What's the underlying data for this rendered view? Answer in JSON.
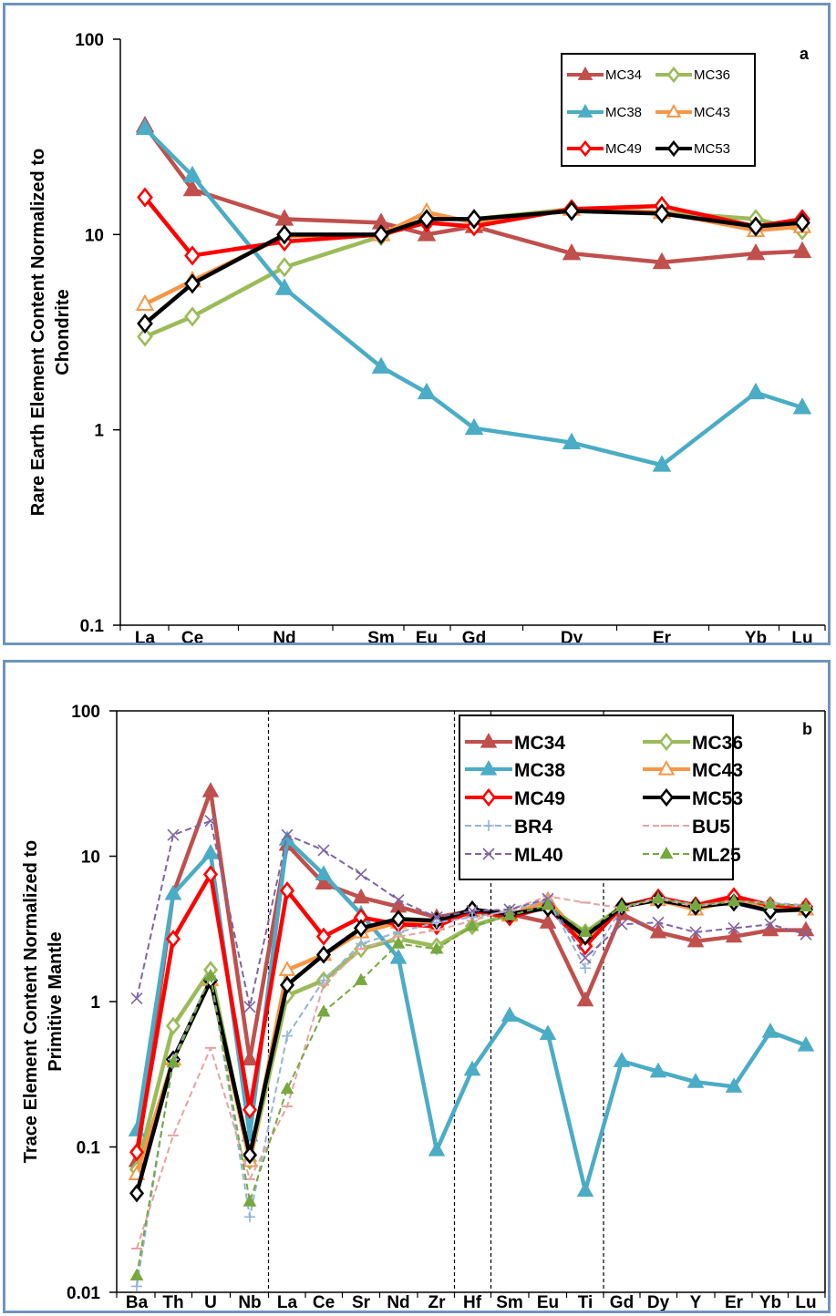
{
  "chart_data": [
    {
      "type": "line",
      "panel_label": "a",
      "ylabel_lines": [
        "Rare Earth Element Content Normalized to",
        "Chondrite"
      ],
      "yscale": "log",
      "ylim": [
        0.1,
        100
      ],
      "yticks": [
        "0.1",
        "1",
        "10",
        "100"
      ],
      "categories": [
        "La",
        "Ce",
        "Nd",
        "Sm",
        "Eu",
        "Gd",
        "Dy",
        "Er",
        "Yb",
        "Lu"
      ],
      "legend_position": "top-right",
      "series": [
        {
          "name": "MC34",
          "color": "#c0504d",
          "marker": "triangle-filled",
          "values": [
            36,
            17,
            12,
            11.5,
            10,
            11,
            8,
            7.2,
            8,
            8.2
          ]
        },
        {
          "name": "MC36",
          "color": "#9bbb59",
          "marker": "diamond-open",
          "values": [
            3.0,
            3.8,
            6.8,
            9.8,
            12,
            12,
            13.5,
            13,
            12,
            10.5
          ]
        },
        {
          "name": "MC38",
          "color": "#4bacc6",
          "marker": "triangle-filled",
          "values": [
            35,
            20,
            5.3,
            2.1,
            1.55,
            1.02,
            0.86,
            0.66,
            1.55,
            1.3
          ]
        },
        {
          "name": "MC43",
          "color": "#f79646",
          "marker": "triangle-open",
          "values": [
            4.4,
            5.8,
            9.8,
            10,
            13,
            11.5,
            13.5,
            13,
            10.5,
            11
          ]
        },
        {
          "name": "MC49",
          "color": "#ff0000",
          "marker": "diamond-open",
          "values": [
            15.5,
            7.8,
            9.2,
            10,
            11.5,
            11,
            13.5,
            14,
            11,
            12
          ]
        },
        {
          "name": "MC53",
          "color": "#000000",
          "marker": "diamond-open",
          "values": [
            3.5,
            5.6,
            10,
            10,
            12,
            12,
            13.2,
            12.8,
            11,
            11.5
          ]
        }
      ]
    },
    {
      "type": "line",
      "panel_label": "b",
      "ylabel_lines": [
        "Trace Element Content Normalized to",
        "Primitive Mantle"
      ],
      "yscale": "log",
      "ylim": [
        0.01,
        100
      ],
      "yticks": [
        "0.01",
        "0.1",
        "1",
        "10",
        "100"
      ],
      "categories": [
        "Ba",
        "Th",
        "U",
        "Nb",
        "La",
        "Ce",
        "Sr",
        "Nd",
        "Zr",
        "Hf",
        "Sm",
        "Eu",
        "Ti",
        "Gd",
        "Dy",
        "Y",
        "Er",
        "Yb",
        "Lu"
      ],
      "divider_after": [
        "Nb",
        "Zr",
        "Hf",
        "Ti"
      ],
      "legend_position": "top-right",
      "series": [
        {
          "name": "MC34",
          "color": "#c0504d",
          "style": "solid",
          "marker": "triangle-filled",
          "values": [
            0.08,
            5.5,
            28,
            0.4,
            12,
            6.5,
            5.2,
            4.5,
            3.8,
            4.2,
            4,
            3.5,
            1.02,
            4,
            3,
            2.6,
            2.8,
            3.1,
            3.1
          ]
        },
        {
          "name": "MC36",
          "color": "#9bbb59",
          "style": "solid",
          "marker": "diamond-open",
          "values": [
            0.07,
            0.68,
            1.65,
            0.08,
            1.1,
            1.4,
            2.3,
            2.7,
            2.4,
            3.3,
            4,
            4.5,
            3,
            4.5,
            5.2,
            4.5,
            4.8,
            4.6,
            4.5
          ]
        },
        {
          "name": "MC38",
          "color": "#4bacc6",
          "style": "solid",
          "marker": "triangle-filled",
          "values": [
            0.13,
            5.5,
            10.5,
            0.12,
            13,
            7.5,
            4,
            2,
            0.095,
            0.34,
            0.8,
            0.6,
            0.05,
            0.39,
            0.33,
            0.28,
            0.26,
            0.62,
            0.5
          ]
        },
        {
          "name": "MC43",
          "color": "#f79646",
          "style": "solid",
          "marker": "triangle-open",
          "values": [
            0.065,
            0.4,
            1.4,
            0.08,
            1.65,
            2.1,
            3,
            3.5,
            3.4,
            4.2,
            3.9,
            5,
            2.6,
            4.6,
            5,
            4.3,
            5,
            4.6,
            4.3
          ]
        },
        {
          "name": "MC49",
          "color": "#ff0000",
          "style": "solid",
          "marker": "diamond-open",
          "values": [
            0.092,
            2.7,
            7.5,
            0.18,
            5.8,
            2.8,
            3.8,
            3.4,
            3.3,
            4.2,
            3.8,
            4.5,
            2.4,
            4.5,
            5.2,
            4.6,
            5.3,
            4.6,
            4.5
          ]
        },
        {
          "name": "MC53",
          "color": "#000000",
          "style": "solid",
          "marker": "diamond-open",
          "values": [
            0.048,
            0.4,
            1.4,
            0.088,
            1.3,
            2.1,
            3.2,
            3.7,
            3.6,
            4.3,
            4,
            4.4,
            2.8,
            4.5,
            5,
            4.5,
            4.8,
            4.2,
            4.3
          ]
        },
        {
          "name": "BR4",
          "color": "#95b3d7",
          "style": "dashed",
          "marker": "plus",
          "values": [
            0.011,
            0.4,
            1.5,
            0.033,
            0.58,
            1.4,
            2.5,
            3,
            3.5,
            3.8,
            4.2,
            5,
            1.7,
            4.4,
            5.2,
            4.6,
            4.9,
            4.8,
            4.6
          ]
        },
        {
          "name": "BU5",
          "color": "#e6a3a3",
          "style": "dashed",
          "marker": "dash",
          "values": [
            0.02,
            0.12,
            0.48,
            0.06,
            0.19,
            1.3,
            2.3,
            2.8,
            3.1,
            3.6,
            4.3,
            5.3,
            4.8,
            4.4,
            5.1,
            4.5,
            4.9,
            4.7,
            4.5
          ]
        },
        {
          "name": "ML40",
          "color": "#8064a2",
          "style": "dashed",
          "marker": "cross",
          "values": [
            1.05,
            14,
            17.5,
            0.92,
            14,
            11,
            7.5,
            5,
            3.8,
            4.2,
            4.3,
            5.1,
            2,
            3.4,
            3.5,
            3,
            3.2,
            3.4,
            2.9
          ]
        },
        {
          "name": "ML25",
          "color": "#77a83f",
          "style": "dashed",
          "marker": "triangle-filled",
          "values": [
            0.013,
            0.38,
            1.5,
            0.042,
            0.25,
            0.85,
            1.4,
            2.5,
            2.3,
            3.3,
            3.9,
            4.6,
            3,
            4.5,
            5.1,
            4.6,
            4.9,
            4.7,
            4.5
          ]
        }
      ]
    }
  ]
}
